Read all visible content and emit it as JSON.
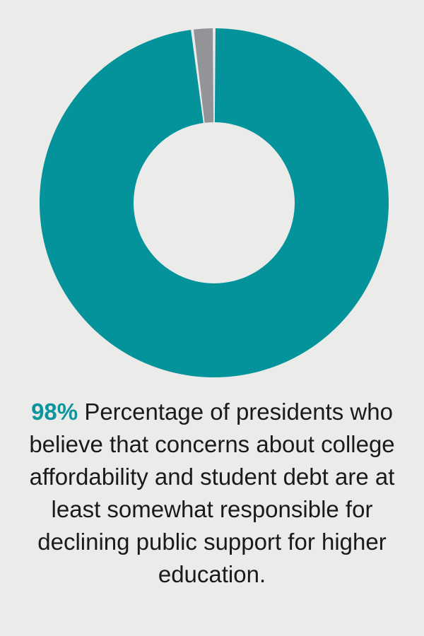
{
  "chart_data": {
    "type": "pie",
    "donut": true,
    "categories": [
      "",
      ""
    ],
    "values": [
      98,
      2
    ],
    "colors": [
      "#04929b",
      "#939497"
    ],
    "title": "",
    "legend": "none"
  },
  "caption": {
    "percent": "98%",
    "text": "Percentage of presidents who believe that concerns about college affordability and student debt are at least somewhat responsible for declining public support for higher education."
  },
  "colors": {
    "background": "#ebebe9",
    "accent": "#0e949d",
    "text": "#1a1a1a"
  }
}
